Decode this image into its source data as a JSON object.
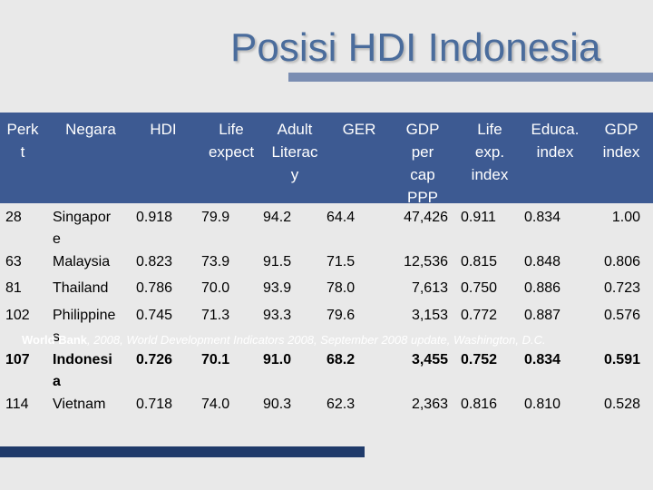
{
  "title": "Posisi HDI Indonesia",
  "headers": {
    "rank": [
      "Perk",
      "t"
    ],
    "country": [
      "Negara"
    ],
    "hdi": [
      "HDI"
    ],
    "life_expect": [
      "Life",
      "expect"
    ],
    "adult_literacy": [
      "Adult",
      "Literac",
      "y"
    ],
    "ger": [
      "GER"
    ],
    "gdp_per_cap": [
      "GDP",
      "per",
      "cap",
      "PPP"
    ],
    "life_exp_index": [
      "Life",
      "exp.",
      "index"
    ],
    "educ_index": [
      "Educa.",
      "index"
    ],
    "gdp_index": [
      "GDP",
      "index"
    ]
  },
  "rows": [
    {
      "rank": "28",
      "country": [
        "Singapor",
        "e"
      ],
      "hdi": "0.918",
      "life": "79.9",
      "literacy": "94.2",
      "ger": "64.4",
      "gdp": "47,426",
      "life_idx": "0.911",
      "edu_idx": "0.834",
      "gdp_idx": "1.00",
      "bold": false
    },
    {
      "rank": "63",
      "country": [
        "Malaysia"
      ],
      "hdi": "0.823",
      "life": "73.9",
      "literacy": "91.5",
      "ger": "71.5",
      "gdp": "12,536",
      "life_idx": "0.815",
      "edu_idx": "0.848",
      "gdp_idx": "0.806",
      "bold": false
    },
    {
      "rank": "81",
      "country": [
        "Thailand"
      ],
      "hdi": "0.786",
      "life": "70.0",
      "literacy": "93.9",
      "ger": "78.0",
      "gdp": "7,613",
      "life_idx": "0.750",
      "edu_idx": "0.886",
      "gdp_idx": "0.723",
      "bold": false
    },
    {
      "rank": "102",
      "country": [
        "Philippine",
        "s"
      ],
      "hdi": "0.745",
      "life": "71.3",
      "literacy": "93.3",
      "ger": "79.6",
      "gdp": "3,153",
      "life_idx": "0.772",
      "edu_idx": "0.887",
      "gdp_idx": "0.576",
      "bold": false
    },
    {
      "rank": "107",
      "country": [
        "Indonesi",
        "a"
      ],
      "hdi": "0.726",
      "life": "70.1",
      "literacy": "91.0",
      "ger": "68.2",
      "gdp": "3,455",
      "life_idx": "0.752",
      "edu_idx": "0.834",
      "gdp_idx": "0.591",
      "bold": true
    },
    {
      "rank": "114",
      "country": [
        "Vietnam"
      ],
      "hdi": "0.718",
      "life": "74.0",
      "literacy": "90.3",
      "ger": "62.3",
      "gdp": "2,363",
      "life_idx": "0.816",
      "edu_idx": "0.810",
      "gdp_idx": "0.528",
      "bold": false
    }
  ],
  "source": {
    "author": "World Bank",
    "text": ", 2008, World Development Indicators 2008, September 2008 update, Washington, D.C."
  },
  "colors": {
    "title": "#4a6c9c",
    "header_bg": "#3d5a92",
    "accent_bar": "#7a8db2",
    "footer_bar": "#1f3a6a"
  }
}
